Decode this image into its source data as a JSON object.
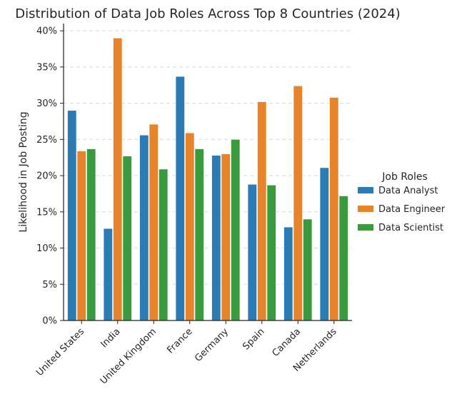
{
  "chart_data": {
    "type": "bar",
    "title": "Distribution of Data Job Roles Across Top 8 Countries (2024)",
    "xlabel": "",
    "ylabel": "Likelihood in Job Posting",
    "ylim": [
      0,
      41
    ],
    "yticks": [
      "0%",
      "5%",
      "10%",
      "15%",
      "20%",
      "25%",
      "30%",
      "35%",
      "40%"
    ],
    "grid": "horizontal dashed",
    "legend_title": "Job Roles",
    "legend_position": "right",
    "categories": [
      "United States",
      "India",
      "United Kingdom",
      "France",
      "Germany",
      "Spain",
      "Canada",
      "Netherlands"
    ],
    "series": [
      {
        "name": "Data Analyst",
        "color": "#2b7bb4",
        "values": [
          29.0,
          12.7,
          25.6,
          33.7,
          22.8,
          18.8,
          12.9,
          21.1
        ]
      },
      {
        "name": "Data Engineer",
        "color": "#e6832b",
        "values": [
          23.4,
          39.0,
          27.1,
          25.9,
          23.0,
          30.2,
          32.4,
          30.8
        ]
      },
      {
        "name": "Data Scientist",
        "color": "#3a9a3e",
        "values": [
          23.7,
          22.7,
          20.9,
          23.7,
          25.0,
          18.7,
          14.0,
          17.2
        ]
      }
    ]
  }
}
